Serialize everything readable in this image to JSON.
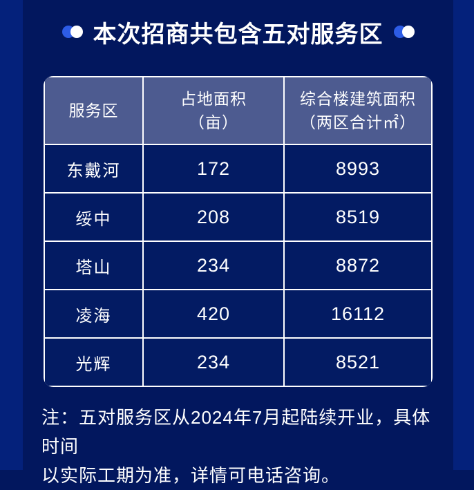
{
  "header": {
    "title": "本次招商共包含五对服务区"
  },
  "table": {
    "columns": [
      {
        "line1": "服务区",
        "line2": ""
      },
      {
        "line1": "占地面积",
        "line2": "（亩）"
      },
      {
        "line1": "综合楼建筑面积",
        "line2": "（两区合计㎡）"
      }
    ],
    "rows": [
      {
        "name": "东戴河",
        "land_area_mu": "172",
        "building_area_m2": "8993"
      },
      {
        "name": "绥中",
        "land_area_mu": "208",
        "building_area_m2": "8519"
      },
      {
        "name": "塔山",
        "land_area_mu": "234",
        "building_area_m2": "8872"
      },
      {
        "name": "凌海",
        "land_area_mu": "420",
        "building_area_m2": "16112"
      },
      {
        "name": "光辉",
        "land_area_mu": "234",
        "building_area_m2": "8521"
      }
    ]
  },
  "note": {
    "line1": "注：五对服务区从2024年7月起陆续开业，具体时间",
    "line2": "以实际工期为准，详情可电话咨询。"
  },
  "colors": {
    "outer_strip": "#04217b",
    "panel_background": "#02175e",
    "cell_background": "#031b63",
    "header_background": "#4d5b90",
    "accent_dot_blue": "#2d5ce6",
    "text": "#ffffff",
    "border": "#ffffff"
  }
}
